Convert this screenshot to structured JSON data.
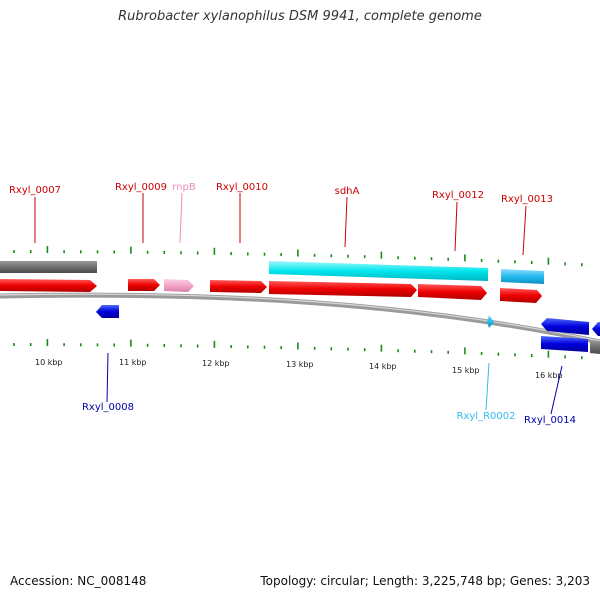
{
  "title": "Rubrobacter xylanophilus DSM 9941, complete genome",
  "footer": {
    "accession": "Accession: NC_008148",
    "summary": "Topology: circular; Length: 3,225,748 bp; Genes: 3,203"
  },
  "colors": {
    "forward_cds": "#ee0000",
    "reverse_cds": "#0000dd",
    "rna": "#f4a6c8",
    "trna": "#22bbee",
    "rrna_fill": "#00e5ee",
    "grey_feature": "#707070",
    "backbone": "#9a9a9a",
    "ticks": "#1a8a1a"
  },
  "scale_labels": [
    "10 kbp",
    "11 kbp",
    "12 kbp",
    "13 kbp",
    "14 kbp",
    "15 kbp",
    "16 kbp"
  ],
  "gene_labels": [
    {
      "id": "Rxyl_0007",
      "color": "#cc0000"
    },
    {
      "id": "Rxyl_0009",
      "color": "#cc0000"
    },
    {
      "id": "rnpB",
      "color": "#f08cbc"
    },
    {
      "id": "Rxyl_0010",
      "color": "#cc0000"
    },
    {
      "id": "sdhA",
      "color": "#cc0000"
    },
    {
      "id": "Rxyl_0012",
      "color": "#cc0000"
    },
    {
      "id": "Rxyl_0013",
      "color": "#cc0000"
    },
    {
      "id": "Rxyl_0008",
      "color": "#0000aa"
    },
    {
      "id": "Rxyl_R0002",
      "color": "#33bbee"
    },
    {
      "id": "Rxyl_0014",
      "color": "#0000aa"
    }
  ]
}
